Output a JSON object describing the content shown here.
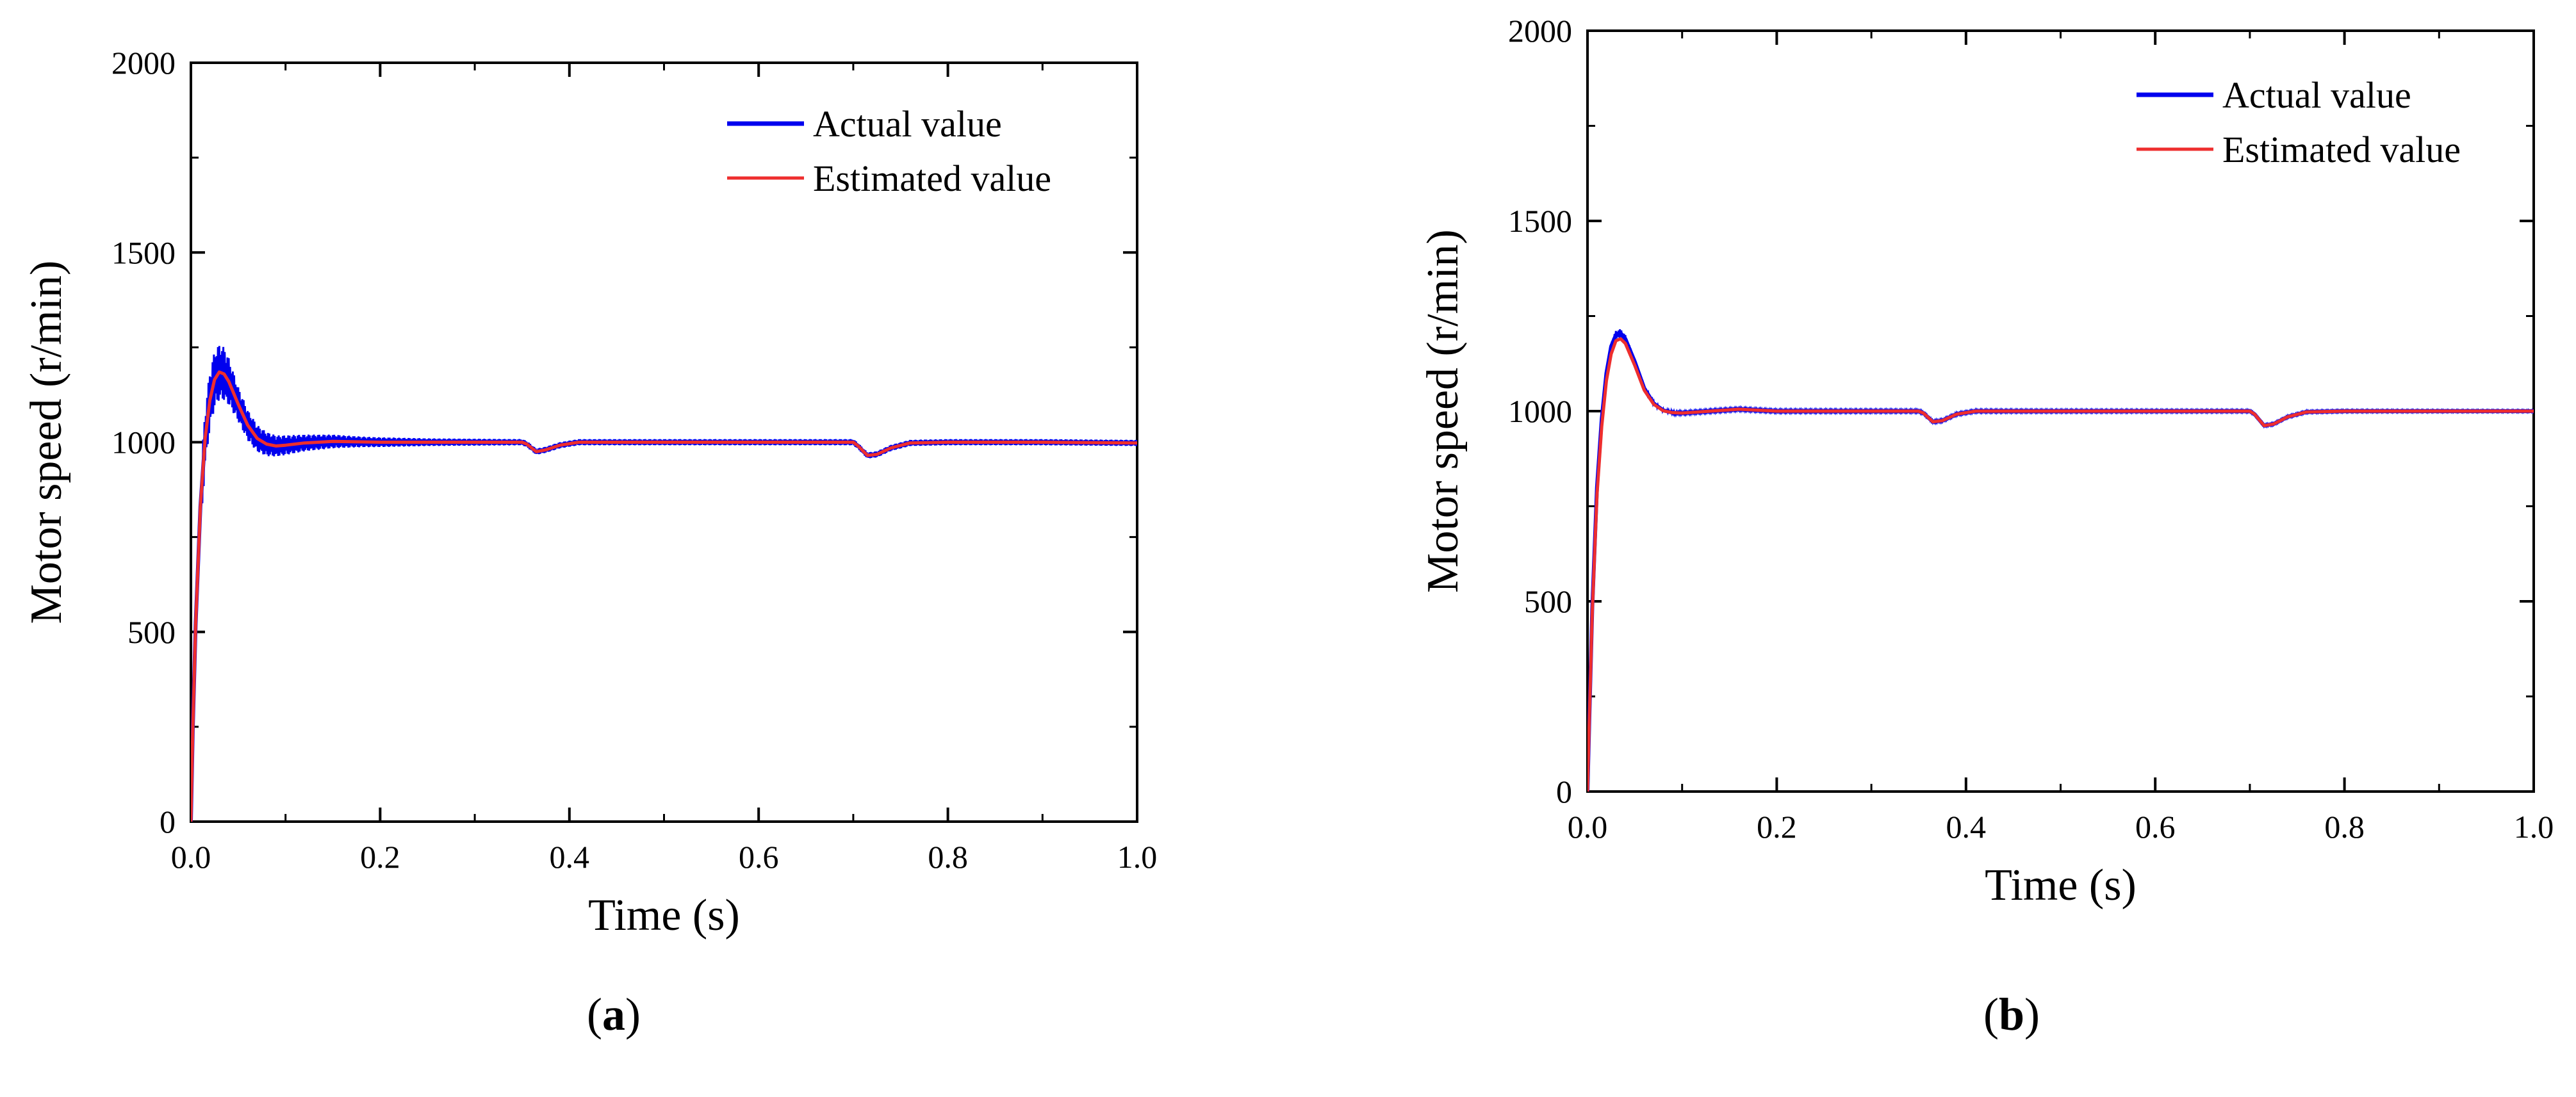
{
  "chart_data": [
    {
      "type": "line",
      "panel": "a",
      "xlabel": "Time (s)",
      "ylabel": "Motor speed (r/min)",
      "xlim": [
        0.0,
        1.0
      ],
      "ylim": [
        0,
        2000
      ],
      "xticks": [
        0.0,
        0.2,
        0.4,
        0.6,
        0.8,
        1.0
      ],
      "xtick_labels": [
        "0.0",
        "0.2",
        "0.4",
        "0.6",
        "0.8",
        "1.0"
      ],
      "yticks": [
        0,
        500,
        1000,
        1500,
        2000
      ],
      "ytick_labels": [
        "0",
        "500",
        "1000",
        "1500",
        "2000"
      ],
      "legend_position": "top-right",
      "series": [
        {
          "name": "Actual value",
          "color": "#0000ee",
          "noise_band": [
            [
              0.025,
              75
            ],
            [
              0.035,
              70
            ],
            [
              0.05,
              45
            ],
            [
              0.07,
              35
            ],
            [
              0.09,
              28
            ],
            [
              0.12,
              22
            ],
            [
              0.18,
              14
            ],
            [
              0.25,
              10
            ],
            [
              0.35,
              8
            ],
            [
              0.7,
              8
            ],
            [
              1.0,
              8
            ]
          ],
          "points": [
            [
              0.0,
              0
            ],
            [
              0.002,
              250
            ],
            [
              0.005,
              520
            ],
            [
              0.01,
              830
            ],
            [
              0.015,
              1010
            ],
            [
              0.02,
              1110
            ],
            [
              0.025,
              1165
            ],
            [
              0.03,
              1185
            ],
            [
              0.035,
              1180
            ],
            [
              0.04,
              1160
            ],
            [
              0.05,
              1100
            ],
            [
              0.06,
              1045
            ],
            [
              0.07,
              1010
            ],
            [
              0.08,
              995
            ],
            [
              0.09,
              990
            ],
            [
              0.1,
              992
            ],
            [
              0.12,
              998
            ],
            [
              0.15,
              1002
            ],
            [
              0.2,
              1000
            ],
            [
              0.3,
              1000
            ],
            [
              0.35,
              1000
            ],
            [
              0.355,
              995
            ],
            [
              0.365,
              975
            ],
            [
              0.375,
              980
            ],
            [
              0.39,
              992
            ],
            [
              0.41,
              1000
            ],
            [
              0.5,
              1000
            ],
            [
              0.6,
              1000
            ],
            [
              0.7,
              1000
            ],
            [
              0.705,
              990
            ],
            [
              0.715,
              965
            ],
            [
              0.725,
              968
            ],
            [
              0.74,
              985
            ],
            [
              0.76,
              998
            ],
            [
              0.8,
              1000
            ],
            [
              0.9,
              1000
            ],
            [
              1.0,
              998
            ]
          ]
        },
        {
          "name": "Estimated value",
          "color": "#ee2e2e",
          "points": [
            [
              0.0,
              0
            ],
            [
              0.002,
              250
            ],
            [
              0.005,
              520
            ],
            [
              0.01,
              830
            ],
            [
              0.015,
              1010
            ],
            [
              0.02,
              1110
            ],
            [
              0.025,
              1165
            ],
            [
              0.03,
              1185
            ],
            [
              0.035,
              1180
            ],
            [
              0.04,
              1160
            ],
            [
              0.05,
              1100
            ],
            [
              0.06,
              1045
            ],
            [
              0.07,
              1010
            ],
            [
              0.08,
              995
            ],
            [
              0.09,
              990
            ],
            [
              0.1,
              992
            ],
            [
              0.12,
              998
            ],
            [
              0.15,
              1002
            ],
            [
              0.2,
              1000
            ],
            [
              0.3,
              1000
            ],
            [
              0.35,
              1000
            ],
            [
              0.355,
              995
            ],
            [
              0.365,
              975
            ],
            [
              0.375,
              980
            ],
            [
              0.39,
              992
            ],
            [
              0.41,
              1000
            ],
            [
              0.5,
              1000
            ],
            [
              0.6,
              1000
            ],
            [
              0.7,
              1000
            ],
            [
              0.705,
              990
            ],
            [
              0.715,
              965
            ],
            [
              0.725,
              968
            ],
            [
              0.74,
              985
            ],
            [
              0.76,
              998
            ],
            [
              0.8,
              1000
            ],
            [
              0.9,
              1000
            ],
            [
              1.0,
              998
            ]
          ]
        }
      ],
      "caption_letter": "a",
      "caption_open": "(",
      "caption_close": ")"
    },
    {
      "type": "line",
      "panel": "b",
      "xlabel": "Time (s)",
      "ylabel": "Motor speed (r/min)",
      "xlim": [
        0.0,
        1.0
      ],
      "ylim": [
        0,
        2000
      ],
      "xticks": [
        0.0,
        0.2,
        0.4,
        0.6,
        0.8,
        1.0
      ],
      "xtick_labels": [
        "0.0",
        "0.2",
        "0.4",
        "0.6",
        "0.8",
        "1.0"
      ],
      "yticks": [
        0,
        500,
        1000,
        1500,
        2000
      ],
      "ytick_labels": [
        "0",
        "500",
        "1000",
        "1500",
        "2000"
      ],
      "legend_position": "top-right",
      "series": [
        {
          "name": "Actual value",
          "color": "#0000ee",
          "noise_band": [
            [
              0.025,
              12
            ],
            [
              0.04,
              10
            ],
            [
              0.06,
              6
            ],
            [
              0.1,
              3
            ],
            [
              1.0,
              2
            ]
          ],
          "points": [
            [
              0.0,
              0
            ],
            [
              0.002,
              200
            ],
            [
              0.005,
              480
            ],
            [
              0.01,
              800
            ],
            [
              0.015,
              980
            ],
            [
              0.02,
              1100
            ],
            [
              0.025,
              1170
            ],
            [
              0.03,
              1200
            ],
            [
              0.035,
              1205
            ],
            [
              0.04,
              1190
            ],
            [
              0.05,
              1130
            ],
            [
              0.06,
              1060
            ],
            [
              0.07,
              1020
            ],
            [
              0.08,
              1002
            ],
            [
              0.09,
              996
            ],
            [
              0.1,
              995
            ],
            [
              0.13,
              1000
            ],
            [
              0.16,
              1005
            ],
            [
              0.2,
              1000
            ],
            [
              0.35,
              1000
            ],
            [
              0.355,
              995
            ],
            [
              0.365,
              972
            ],
            [
              0.375,
              975
            ],
            [
              0.39,
              992
            ],
            [
              0.41,
              1000
            ],
            [
              0.6,
              1000
            ],
            [
              0.7,
              1000
            ],
            [
              0.705,
              992
            ],
            [
              0.715,
              962
            ],
            [
              0.725,
              966
            ],
            [
              0.74,
              985
            ],
            [
              0.76,
              998
            ],
            [
              0.8,
              1000
            ],
            [
              0.9,
              1000
            ],
            [
              1.0,
              1000
            ]
          ]
        },
        {
          "name": "Estimated value",
          "color": "#ee2e2e",
          "points": [
            [
              0.0,
              0
            ],
            [
              0.002,
              200
            ],
            [
              0.005,
              470
            ],
            [
              0.01,
              780
            ],
            [
              0.015,
              960
            ],
            [
              0.02,
              1080
            ],
            [
              0.025,
              1150
            ],
            [
              0.03,
              1185
            ],
            [
              0.035,
              1190
            ],
            [
              0.04,
              1178
            ],
            [
              0.05,
              1120
            ],
            [
              0.06,
              1055
            ],
            [
              0.07,
              1018
            ],
            [
              0.08,
              1001
            ],
            [
              0.09,
              996
            ],
            [
              0.1,
              995
            ],
            [
              0.13,
              1000
            ],
            [
              0.16,
              1005
            ],
            [
              0.2,
              1000
            ],
            [
              0.35,
              1000
            ],
            [
              0.355,
              995
            ],
            [
              0.365,
              972
            ],
            [
              0.375,
              975
            ],
            [
              0.39,
              992
            ],
            [
              0.41,
              1000
            ],
            [
              0.6,
              1000
            ],
            [
              0.7,
              1000
            ],
            [
              0.705,
              992
            ],
            [
              0.715,
              962
            ],
            [
              0.725,
              966
            ],
            [
              0.74,
              985
            ],
            [
              0.76,
              998
            ],
            [
              0.8,
              1000
            ],
            [
              0.9,
              1000
            ],
            [
              1.0,
              1000
            ]
          ]
        }
      ],
      "caption_letter": "b",
      "caption_open": "(",
      "caption_close": ")"
    }
  ]
}
